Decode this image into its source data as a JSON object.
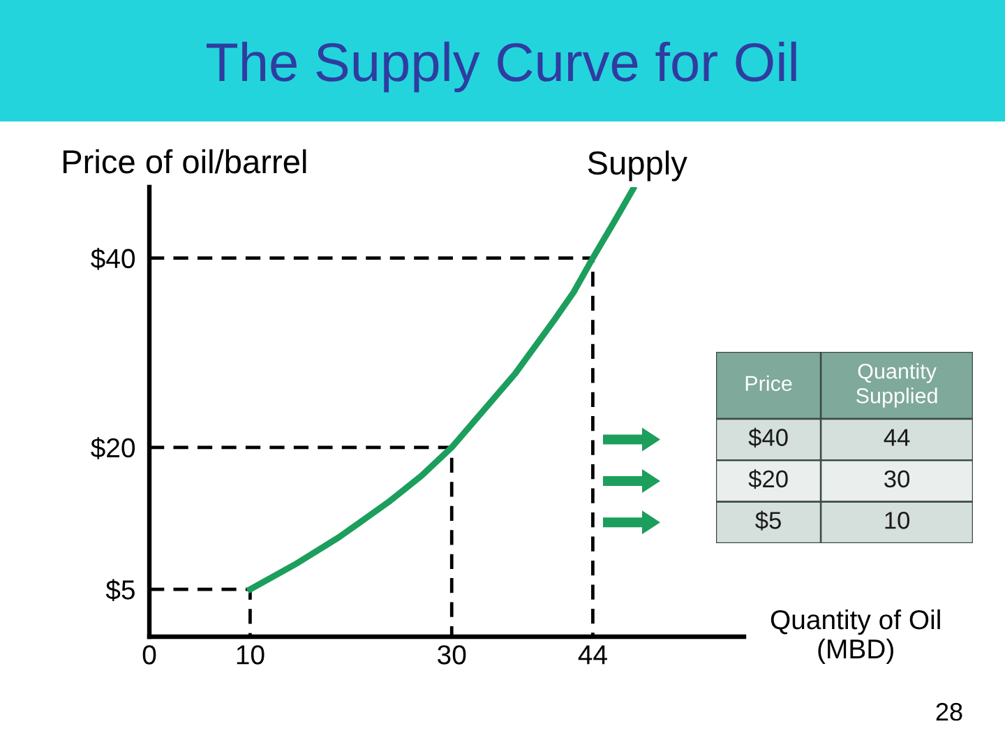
{
  "chart_data": [
    {
      "type": "line",
      "title": "The Supply Curve for Oil",
      "xlabel": "Quantity of Oil\n(MBD)",
      "ylabel": "Price of oil/barrel",
      "annotations": [
        "28"
      ],
      "series": [
        {
          "name": "Supply",
          "color": "#1c9e5c",
          "x": [
            10,
            14.4,
            18.8,
            23.7,
            27,
            30,
            36.3,
            40.2,
            42.1,
            44,
            46.1,
            48
          ],
          "values": [
            5,
            7.6,
            10.5,
            14.2,
            17,
            20,
            27.8,
            33.5,
            36.4,
            40,
            43.8,
            47.3
          ]
        },
        {
          "color": "#000000",
          "line_style": "dashed",
          "x": [
            0,
            44,
            44
          ],
          "values": [
            40,
            40,
            0
          ]
        },
        {
          "color": "#000000",
          "line_style": "dashed",
          "x": [
            0,
            30,
            30
          ],
          "values": [
            20,
            20,
            0
          ]
        },
        {
          "color": "#000000",
          "line_style": "dashed",
          "x": [
            0,
            10,
            10
          ],
          "values": [
            5,
            5,
            0
          ]
        }
      ],
      "xlim": [
        0,
        59
      ],
      "ylim": [
        0,
        47.5
      ],
      "xticks": [
        0,
        10,
        30,
        44
      ],
      "yticks": [
        {
          "value": 5,
          "label": "$5"
        },
        {
          "value": 20,
          "label": "$20"
        },
        {
          "value": 40,
          "label": "$40"
        }
      ],
      "marker": "none",
      "line_style": "solid"
    },
    {
      "type": "other",
      "categories": [
        "Price",
        "Quantity\nSupplied"
      ],
      "cell_labels": [
        [
          "$40",
          "44"
        ],
        [
          "$20",
          "30"
        ],
        [
          "$5",
          "10"
        ]
      ]
    }
  ]
}
